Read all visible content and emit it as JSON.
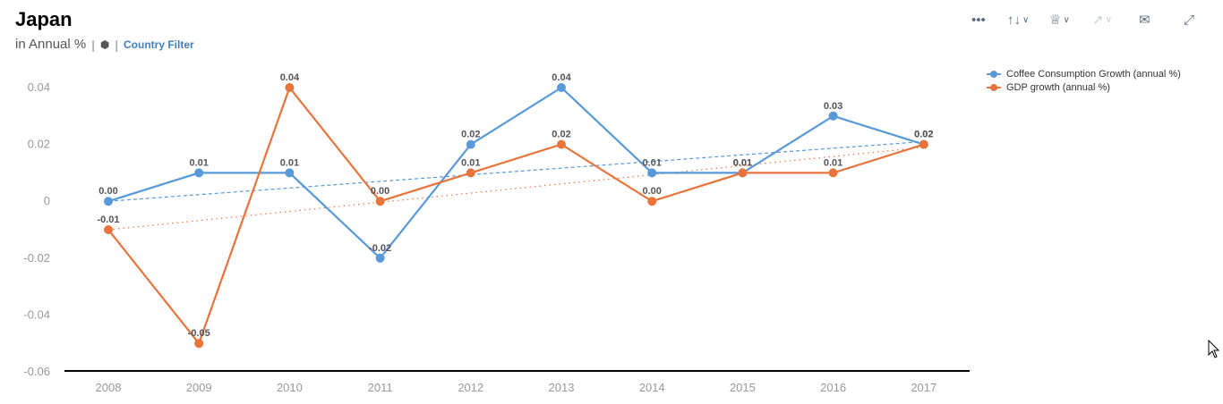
{
  "header": {
    "title": "Japan",
    "subtitle_unit": "in Annual %",
    "filter_label": "Country Filter"
  },
  "toolbar": {
    "more_icon": "more-horizontal-icon",
    "sort_icon": "sort-icon",
    "rank_icon": "trophy-icon",
    "trend_icon": "trend-arrow-icon",
    "comment_icon": "add-comment-icon",
    "collapse_icon": "collapse-icon"
  },
  "chart_data": {
    "type": "line",
    "categories": [
      "2008",
      "2009",
      "2010",
      "2011",
      "2012",
      "2013",
      "2014",
      "2015",
      "2016",
      "2017"
    ],
    "series": [
      {
        "name": "Coffee Consumption Growth (annual %)",
        "color": "#5899da",
        "values": [
          0.0,
          0.01,
          0.01,
          -0.02,
          0.02,
          0.04,
          0.01,
          0.01,
          0.03,
          0.02
        ],
        "labels": [
          "0.00",
          "0.01",
          "0.01",
          "-0.02",
          "0.02",
          "0.04",
          "0.01",
          "0.01",
          "0.03",
          "0.02"
        ],
        "trendline": {
          "start": 0.0,
          "end": 0.021,
          "style": "dashed"
        }
      },
      {
        "name": "GDP growth (annual %)",
        "color": "#e8743b",
        "values": [
          -0.01,
          -0.05,
          0.04,
          0.0,
          0.01,
          0.02,
          0.0,
          0.01,
          0.01,
          0.02
        ],
        "labels": [
          "-0.01",
          "-0.05",
          "0.04",
          "0.00",
          "0.01",
          "0.02",
          "0.00",
          "0.01",
          "0.01",
          "0.02"
        ],
        "trendline": {
          "start": -0.01,
          "end": 0.019,
          "style": "dotted"
        }
      }
    ],
    "yticks": [
      "0.04",
      "0.02",
      "0",
      "-0.02",
      "-0.04",
      "-0.06"
    ],
    "ytick_values": [
      0.04,
      0.02,
      0,
      -0.02,
      -0.04,
      -0.06
    ],
    "ylim": [
      -0.06,
      0.04
    ],
    "grid": false,
    "legend_position": "top-right"
  }
}
